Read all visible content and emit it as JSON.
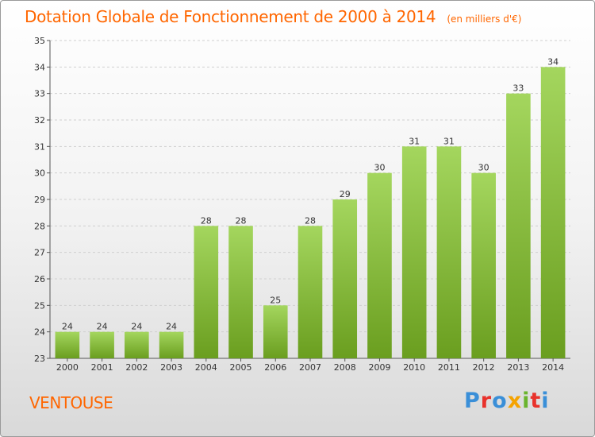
{
  "header": {
    "title": "Dotation Globale de Fonctionnement de 2000 à 2014",
    "subtitle": "(en milliers d'€)"
  },
  "footer": {
    "commune": "VENTOUSE",
    "logo_text": "Proxiti",
    "logo_colors": [
      "#3a8fd8",
      "#e8322c",
      "#3a8fd8",
      "#f5a300",
      "#6ab42d",
      "#e8322c",
      "#3a8fd8"
    ]
  },
  "colors": {
    "title": "#ff6600",
    "bar_light": "#a4d65e",
    "bar_dark": "#6a9e1f",
    "grid": "#d0d0d0",
    "axis": "#555555"
  },
  "chart_data": {
    "type": "bar",
    "categories": [
      "2000",
      "2001",
      "2002",
      "2003",
      "2004",
      "2005",
      "2006",
      "2007",
      "2008",
      "2009",
      "2010",
      "2011",
      "2012",
      "2013",
      "2014"
    ],
    "values": [
      24,
      24,
      24,
      24,
      28,
      28,
      25,
      28,
      29,
      30,
      31,
      31,
      30,
      33,
      34
    ],
    "title": "Dotation Globale de Fonctionnement de 2000 à 2014",
    "subtitle": "(en milliers d'€)",
    "ylim": [
      23,
      35
    ],
    "yticks": [
      23,
      24,
      25,
      26,
      27,
      28,
      29,
      30,
      31,
      32,
      33,
      34,
      35
    ],
    "grid": true,
    "legend": "none"
  }
}
